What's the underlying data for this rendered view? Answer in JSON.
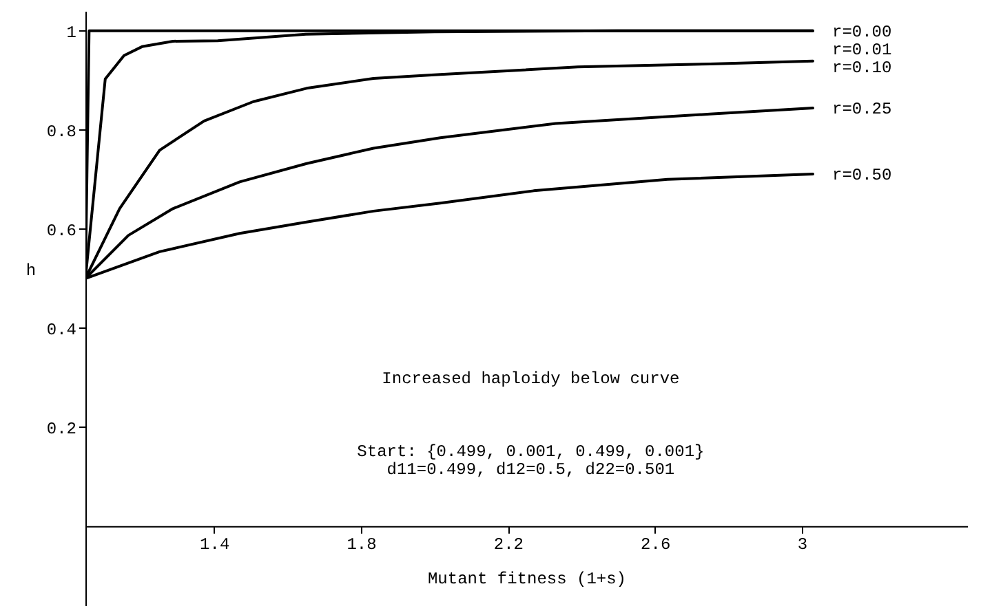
{
  "chart_data": {
    "type": "line",
    "xlabel": "Mutant fitness (1+s)",
    "ylabel": "h",
    "xlim": [
      1.05,
      3.45
    ],
    "ylim": [
      -0.16,
      1.04
    ],
    "xticks": [
      1.4,
      1.8,
      2.2,
      2.6,
      3
    ],
    "yticks": [
      0.2,
      0.4,
      0.6,
      0.8,
      1
    ],
    "grid": false,
    "annotations": [
      "Increased haploidy below curve",
      "Start: {0.499, 0.001, 0.499, 0.001}",
      "d11=0.499,  d12=0.5,  d22=0.501"
    ],
    "series": [
      {
        "name": "r=0.00",
        "color": "#000000",
        "x": [
          1.05,
          1.06,
          1.5,
          2.0,
          2.5,
          3.03
        ],
        "values": [
          0.5,
          1.0,
          1.0,
          1.0,
          1.0,
          1.0
        ]
      },
      {
        "name": "r=0.01",
        "color": "#000000",
        "x": [
          1.05,
          1.104,
          1.155,
          1.204,
          1.288,
          1.41,
          1.65,
          2.0,
          2.5,
          3.03
        ],
        "values": [
          0.5,
          0.903,
          0.95,
          0.968,
          0.979,
          0.98,
          0.993,
          0.998,
          1.0,
          1.0
        ]
      },
      {
        "name": "r=0.10",
        "color": "#000000",
        "x": [
          1.05,
          1.143,
          1.252,
          1.373,
          1.507,
          1.652,
          1.834,
          2.016,
          2.39,
          2.75,
          3.03
        ],
        "values": [
          0.5,
          0.641,
          0.759,
          0.818,
          0.857,
          0.884,
          0.904,
          0.912,
          0.927,
          0.933,
          0.939
        ]
      },
      {
        "name": "r=0.25",
        "color": "#000000",
        "x": [
          1.05,
          1.167,
          1.288,
          1.47,
          1.652,
          1.834,
          2.016,
          2.33,
          2.75,
          3.03
        ],
        "values": [
          0.5,
          0.587,
          0.641,
          0.695,
          0.732,
          0.763,
          0.784,
          0.813,
          0.832,
          0.844
        ]
      },
      {
        "name": "r=0.50",
        "color": "#000000",
        "x": [
          1.05,
          1.252,
          1.47,
          1.652,
          1.834,
          2.016,
          2.27,
          2.634,
          3.03
        ],
        "values": [
          0.5,
          0.554,
          0.591,
          0.614,
          0.636,
          0.652,
          0.677,
          0.7,
          0.711
        ]
      }
    ]
  }
}
